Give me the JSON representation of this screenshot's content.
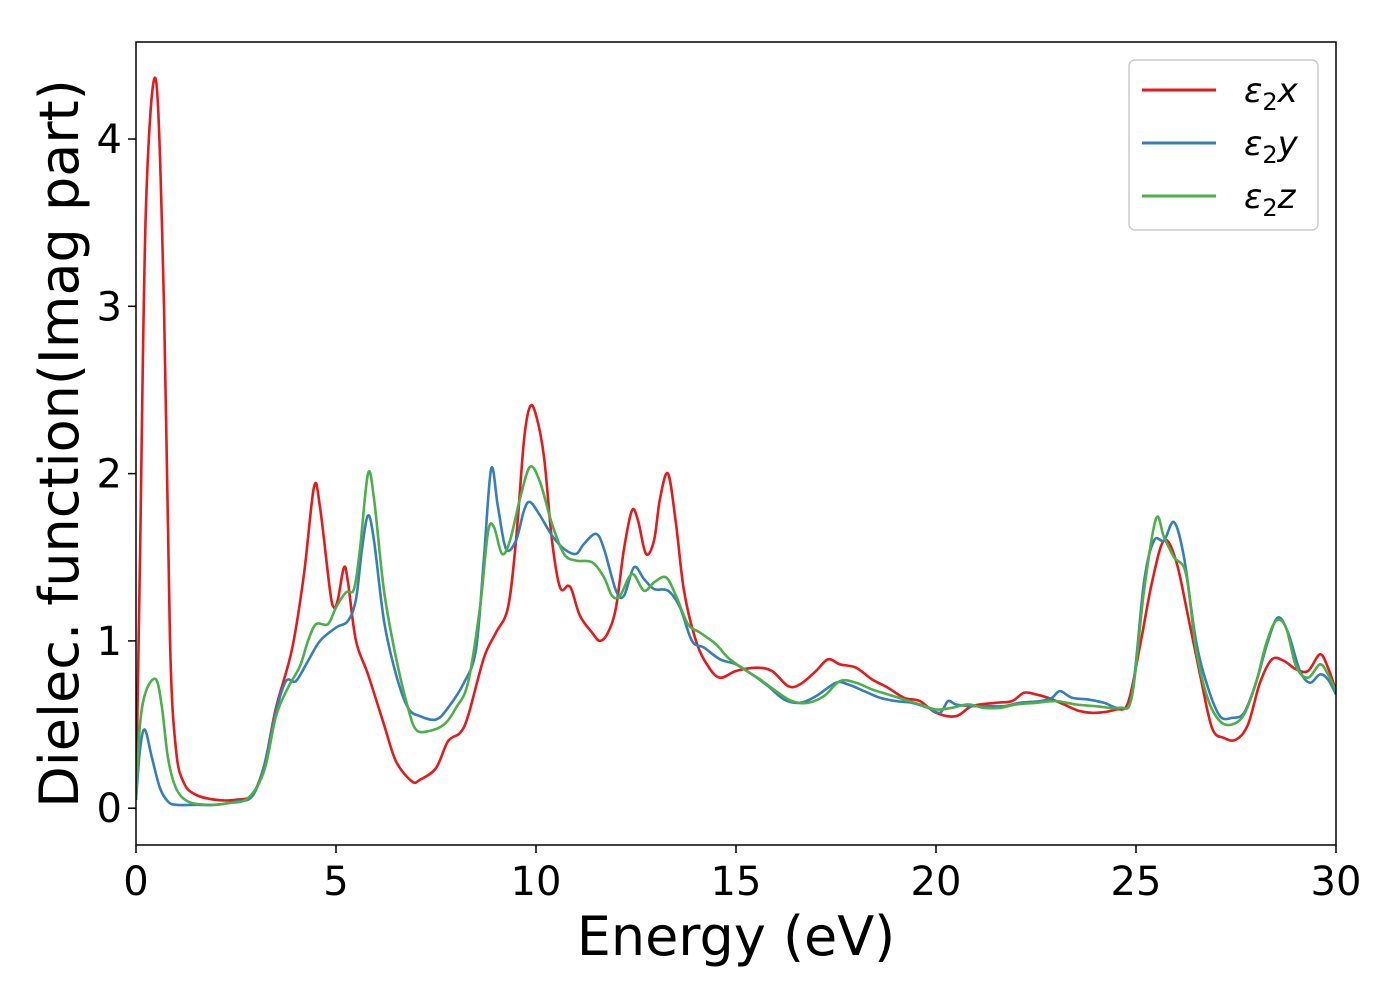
{
  "chart_data": {
    "type": "line",
    "title": "",
    "xlabel": "Energy (eV)",
    "ylabel": "Dielec. function(Imag part)",
    "xlim": [
      0,
      30
    ],
    "ylim": [
      -0.22,
      4.58
    ],
    "xticks": [
      0,
      5,
      10,
      15,
      20,
      25,
      30
    ],
    "yticks": [
      0,
      1,
      2,
      3,
      4
    ],
    "grid": false,
    "legend_position": "top-right",
    "series": [
      {
        "name": "ε₂x",
        "legend": {
          "base": "ε",
          "sub": "2",
          "suffix": "x"
        },
        "color": "#e41a1c",
        "points": [
          [
            0,
            0.05
          ],
          [
            0.1,
            1.5
          ],
          [
            0.25,
            3.6
          ],
          [
            0.5,
            4.35
          ],
          [
            0.7,
            3.0
          ],
          [
            0.85,
            1.0
          ],
          [
            1.0,
            0.35
          ],
          [
            1.2,
            0.15
          ],
          [
            1.5,
            0.08
          ],
          [
            2.0,
            0.05
          ],
          [
            2.5,
            0.05
          ],
          [
            2.9,
            0.08
          ],
          [
            3.2,
            0.25
          ],
          [
            3.5,
            0.6
          ],
          [
            3.9,
            0.95
          ],
          [
            4.2,
            1.4
          ],
          [
            4.45,
            1.92
          ],
          [
            4.6,
            1.8
          ],
          [
            4.85,
            1.3
          ],
          [
            4.95,
            1.2
          ],
          [
            5.05,
            1.25
          ],
          [
            5.2,
            1.44
          ],
          [
            5.3,
            1.35
          ],
          [
            5.5,
            1.0
          ],
          [
            5.8,
            0.8
          ],
          [
            6.2,
            0.5
          ],
          [
            6.5,
            0.28
          ],
          [
            6.9,
            0.16
          ],
          [
            7.1,
            0.17
          ],
          [
            7.5,
            0.24
          ],
          [
            7.8,
            0.4
          ],
          [
            8.1,
            0.45
          ],
          [
            8.3,
            0.55
          ],
          [
            8.7,
            0.9
          ],
          [
            9.0,
            1.05
          ],
          [
            9.3,
            1.2
          ],
          [
            9.5,
            1.6
          ],
          [
            9.7,
            2.2
          ],
          [
            9.85,
            2.4
          ],
          [
            10.0,
            2.35
          ],
          [
            10.2,
            2.1
          ],
          [
            10.4,
            1.6
          ],
          [
            10.6,
            1.32
          ],
          [
            10.8,
            1.33
          ],
          [
            10.9,
            1.3
          ],
          [
            11.1,
            1.15
          ],
          [
            11.4,
            1.05
          ],
          [
            11.6,
            1.0
          ],
          [
            11.8,
            1.05
          ],
          [
            12.0,
            1.2
          ],
          [
            12.2,
            1.55
          ],
          [
            12.4,
            1.78
          ],
          [
            12.55,
            1.72
          ],
          [
            12.75,
            1.52
          ],
          [
            12.95,
            1.6
          ],
          [
            13.1,
            1.85
          ],
          [
            13.3,
            2.0
          ],
          [
            13.5,
            1.7
          ],
          [
            13.7,
            1.3
          ],
          [
            14.0,
            1.0
          ],
          [
            14.3,
            0.85
          ],
          [
            14.6,
            0.78
          ],
          [
            15.0,
            0.82
          ],
          [
            15.5,
            0.84
          ],
          [
            15.9,
            0.82
          ],
          [
            16.3,
            0.73
          ],
          [
            16.6,
            0.74
          ],
          [
            17.0,
            0.82
          ],
          [
            17.3,
            0.89
          ],
          [
            17.6,
            0.86
          ],
          [
            18.0,
            0.84
          ],
          [
            18.4,
            0.77
          ],
          [
            18.8,
            0.72
          ],
          [
            19.2,
            0.66
          ],
          [
            19.6,
            0.64
          ],
          [
            20.0,
            0.57
          ],
          [
            20.5,
            0.55
          ],
          [
            20.9,
            0.61
          ],
          [
            21.5,
            0.63
          ],
          [
            21.9,
            0.64
          ],
          [
            22.2,
            0.69
          ],
          [
            22.5,
            0.68
          ],
          [
            22.8,
            0.66
          ],
          [
            23.2,
            0.62
          ],
          [
            23.6,
            0.58
          ],
          [
            24.0,
            0.57
          ],
          [
            24.5,
            0.59
          ],
          [
            24.8,
            0.63
          ],
          [
            25.1,
            0.97
          ],
          [
            25.4,
            1.35
          ],
          [
            25.7,
            1.6
          ],
          [
            26.0,
            1.48
          ],
          [
            26.3,
            1.15
          ],
          [
            26.6,
            0.8
          ],
          [
            26.9,
            0.48
          ],
          [
            27.2,
            0.42
          ],
          [
            27.5,
            0.41
          ],
          [
            27.8,
            0.5
          ],
          [
            28.1,
            0.75
          ],
          [
            28.4,
            0.89
          ],
          [
            28.7,
            0.88
          ],
          [
            29.0,
            0.83
          ],
          [
            29.3,
            0.82
          ],
          [
            29.6,
            0.92
          ],
          [
            29.8,
            0.84
          ],
          [
            30.0,
            0.7
          ]
        ]
      },
      {
        "name": "ε₂y",
        "legend": {
          "base": "ε",
          "sub": "2",
          "suffix": "y"
        },
        "color": "#377eb8",
        "points": [
          [
            0,
            0.05
          ],
          [
            0.1,
            0.35
          ],
          [
            0.22,
            0.47
          ],
          [
            0.4,
            0.3
          ],
          [
            0.6,
            0.12
          ],
          [
            0.8,
            0.04
          ],
          [
            1.0,
            0.02
          ],
          [
            1.5,
            0.02
          ],
          [
            2.0,
            0.02
          ],
          [
            2.5,
            0.04
          ],
          [
            2.9,
            0.07
          ],
          [
            3.2,
            0.25
          ],
          [
            3.5,
            0.58
          ],
          [
            3.75,
            0.76
          ],
          [
            4.0,
            0.76
          ],
          [
            4.3,
            0.88
          ],
          [
            4.6,
            1.0
          ],
          [
            5.0,
            1.08
          ],
          [
            5.3,
            1.12
          ],
          [
            5.5,
            1.25
          ],
          [
            5.65,
            1.55
          ],
          [
            5.8,
            1.75
          ],
          [
            5.95,
            1.6
          ],
          [
            6.2,
            1.12
          ],
          [
            6.5,
            0.8
          ],
          [
            6.8,
            0.6
          ],
          [
            7.1,
            0.55
          ],
          [
            7.5,
            0.53
          ],
          [
            7.8,
            0.6
          ],
          [
            8.2,
            0.75
          ],
          [
            8.5,
            0.95
          ],
          [
            8.7,
            1.5
          ],
          [
            8.88,
            2.03
          ],
          [
            9.05,
            1.8
          ],
          [
            9.25,
            1.55
          ],
          [
            9.5,
            1.6
          ],
          [
            9.7,
            1.78
          ],
          [
            9.85,
            1.83
          ],
          [
            10.1,
            1.75
          ],
          [
            10.4,
            1.63
          ],
          [
            10.7,
            1.55
          ],
          [
            11.0,
            1.52
          ],
          [
            11.2,
            1.58
          ],
          [
            11.5,
            1.64
          ],
          [
            11.7,
            1.55
          ],
          [
            12.0,
            1.3
          ],
          [
            12.2,
            1.27
          ],
          [
            12.45,
            1.44
          ],
          [
            12.7,
            1.37
          ],
          [
            12.95,
            1.31
          ],
          [
            13.3,
            1.3
          ],
          [
            13.6,
            1.2
          ],
          [
            13.9,
            1.0
          ],
          [
            14.2,
            0.96
          ],
          [
            14.6,
            0.89
          ],
          [
            15.0,
            0.86
          ],
          [
            15.4,
            0.8
          ],
          [
            15.8,
            0.73
          ],
          [
            16.2,
            0.65
          ],
          [
            16.6,
            0.63
          ],
          [
            17.0,
            0.67
          ],
          [
            17.5,
            0.75
          ],
          [
            17.8,
            0.74
          ],
          [
            18.2,
            0.7
          ],
          [
            18.6,
            0.66
          ],
          [
            19.0,
            0.64
          ],
          [
            19.4,
            0.63
          ],
          [
            19.8,
            0.6
          ],
          [
            20.1,
            0.57
          ],
          [
            20.3,
            0.64
          ],
          [
            20.5,
            0.62
          ],
          [
            20.9,
            0.61
          ],
          [
            21.3,
            0.61
          ],
          [
            21.7,
            0.61
          ],
          [
            22.1,
            0.63
          ],
          [
            22.6,
            0.64
          ],
          [
            22.9,
            0.66
          ],
          [
            23.1,
            0.7
          ],
          [
            23.4,
            0.66
          ],
          [
            23.8,
            0.65
          ],
          [
            24.2,
            0.63
          ],
          [
            24.6,
            0.6
          ],
          [
            24.9,
            0.68
          ],
          [
            25.2,
            1.35
          ],
          [
            25.45,
            1.6
          ],
          [
            25.7,
            1.6
          ],
          [
            25.95,
            1.71
          ],
          [
            26.2,
            1.5
          ],
          [
            26.5,
            1.0
          ],
          [
            26.8,
            0.72
          ],
          [
            27.1,
            0.55
          ],
          [
            27.4,
            0.54
          ],
          [
            27.7,
            0.57
          ],
          [
            28.0,
            0.75
          ],
          [
            28.3,
            1.0
          ],
          [
            28.55,
            1.14
          ],
          [
            28.8,
            1.05
          ],
          [
            29.1,
            0.82
          ],
          [
            29.35,
            0.75
          ],
          [
            29.6,
            0.8
          ],
          [
            29.8,
            0.77
          ],
          [
            30.0,
            0.68
          ]
        ]
      },
      {
        "name": "ε₂z",
        "legend": {
          "base": "ε",
          "sub": "2",
          "suffix": "z"
        },
        "color": "#4daf4a",
        "points": [
          [
            0,
            0.05
          ],
          [
            0.1,
            0.5
          ],
          [
            0.25,
            0.7
          ],
          [
            0.5,
            0.77
          ],
          [
            0.65,
            0.6
          ],
          [
            0.8,
            0.3
          ],
          [
            1.0,
            0.12
          ],
          [
            1.3,
            0.04
          ],
          [
            1.8,
            0.02
          ],
          [
            2.3,
            0.03
          ],
          [
            2.8,
            0.06
          ],
          [
            3.2,
            0.22
          ],
          [
            3.5,
            0.55
          ],
          [
            3.8,
            0.72
          ],
          [
            4.1,
            0.85
          ],
          [
            4.3,
            1.0
          ],
          [
            4.5,
            1.1
          ],
          [
            4.8,
            1.1
          ],
          [
            5.0,
            1.2
          ],
          [
            5.25,
            1.29
          ],
          [
            5.45,
            1.31
          ],
          [
            5.6,
            1.55
          ],
          [
            5.8,
            2.0
          ],
          [
            5.95,
            1.85
          ],
          [
            6.2,
            1.3
          ],
          [
            6.5,
            0.9
          ],
          [
            6.8,
            0.6
          ],
          [
            7.0,
            0.47
          ],
          [
            7.3,
            0.46
          ],
          [
            7.7,
            0.5
          ],
          [
            8.0,
            0.6
          ],
          [
            8.3,
            0.75
          ],
          [
            8.6,
            1.2
          ],
          [
            8.8,
            1.65
          ],
          [
            8.95,
            1.68
          ],
          [
            9.15,
            1.52
          ],
          [
            9.35,
            1.6
          ],
          [
            9.6,
            1.85
          ],
          [
            9.85,
            2.04
          ],
          [
            10.1,
            1.95
          ],
          [
            10.4,
            1.7
          ],
          [
            10.7,
            1.52
          ],
          [
            11.0,
            1.48
          ],
          [
            11.4,
            1.47
          ],
          [
            11.7,
            1.38
          ],
          [
            11.9,
            1.27
          ],
          [
            12.1,
            1.27
          ],
          [
            12.4,
            1.4
          ],
          [
            12.7,
            1.3
          ],
          [
            12.95,
            1.35
          ],
          [
            13.25,
            1.38
          ],
          [
            13.5,
            1.27
          ],
          [
            13.8,
            1.1
          ],
          [
            14.1,
            1.05
          ],
          [
            14.5,
            0.98
          ],
          [
            14.8,
            0.9
          ],
          [
            15.2,
            0.83
          ],
          [
            15.6,
            0.77
          ],
          [
            16.0,
            0.7
          ],
          [
            16.4,
            0.64
          ],
          [
            16.8,
            0.63
          ],
          [
            17.2,
            0.67
          ],
          [
            17.6,
            0.76
          ],
          [
            18.0,
            0.75
          ],
          [
            18.4,
            0.71
          ],
          [
            18.8,
            0.68
          ],
          [
            19.2,
            0.65
          ],
          [
            19.6,
            0.62
          ],
          [
            20.0,
            0.59
          ],
          [
            20.4,
            0.6
          ],
          [
            20.8,
            0.62
          ],
          [
            21.2,
            0.6
          ],
          [
            21.6,
            0.6
          ],
          [
            22.0,
            0.62
          ],
          [
            22.5,
            0.63
          ],
          [
            23.0,
            0.64
          ],
          [
            23.5,
            0.62
          ],
          [
            24.0,
            0.61
          ],
          [
            24.6,
            0.6
          ],
          [
            24.9,
            0.67
          ],
          [
            25.2,
            1.3
          ],
          [
            25.5,
            1.73
          ],
          [
            25.7,
            1.62
          ],
          [
            25.95,
            1.5
          ],
          [
            26.25,
            1.4
          ],
          [
            26.5,
            0.95
          ],
          [
            26.8,
            0.65
          ],
          [
            27.1,
            0.52
          ],
          [
            27.4,
            0.5
          ],
          [
            27.7,
            0.56
          ],
          [
            28.0,
            0.75
          ],
          [
            28.25,
            0.98
          ],
          [
            28.5,
            1.12
          ],
          [
            28.75,
            1.08
          ],
          [
            29.0,
            0.85
          ],
          [
            29.3,
            0.78
          ],
          [
            29.6,
            0.86
          ],
          [
            29.8,
            0.8
          ],
          [
            30.0,
            0.7
          ]
        ]
      }
    ]
  }
}
